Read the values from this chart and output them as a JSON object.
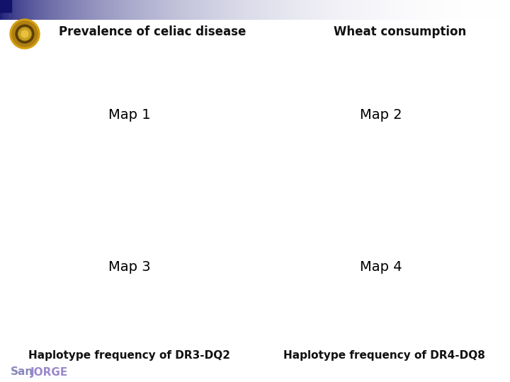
{
  "title_left": "Prevalence of celiac disease",
  "title_right": "Wheat consumption",
  "label_bl": "Haplotype frequency of DR3-DQ2",
  "label_br": "Haplotype frequency of DR4-DQ8",
  "san_color": "#8888bb",
  "jorge_color": "#9988cc",
  "bg_color": "#ffffff",
  "header_dark": "#1e1e7a",
  "header_light": "#ffffff",
  "title_fontsize": 12,
  "label_fontsize": 11,
  "sanjorge_fontsize": 11,
  "map1_base": "#f5c0a0",
  "map1_mid": "#e8894a",
  "map1_dark": "#c04010",
  "map2_base": "#e8d8a8",
  "map2_mid": "#c8a060",
  "map2_dark": "#7a5020",
  "map3_base": "#c0d0e0",
  "map3_mid": "#6888b0",
  "map3_dark": "#2a4878",
  "map4_base": "#c0d0e0",
  "map4_mid": "#6888b0",
  "map4_dark": "#2a4878",
  "map_edge": "#555555",
  "map_edge_lw": 0.3
}
